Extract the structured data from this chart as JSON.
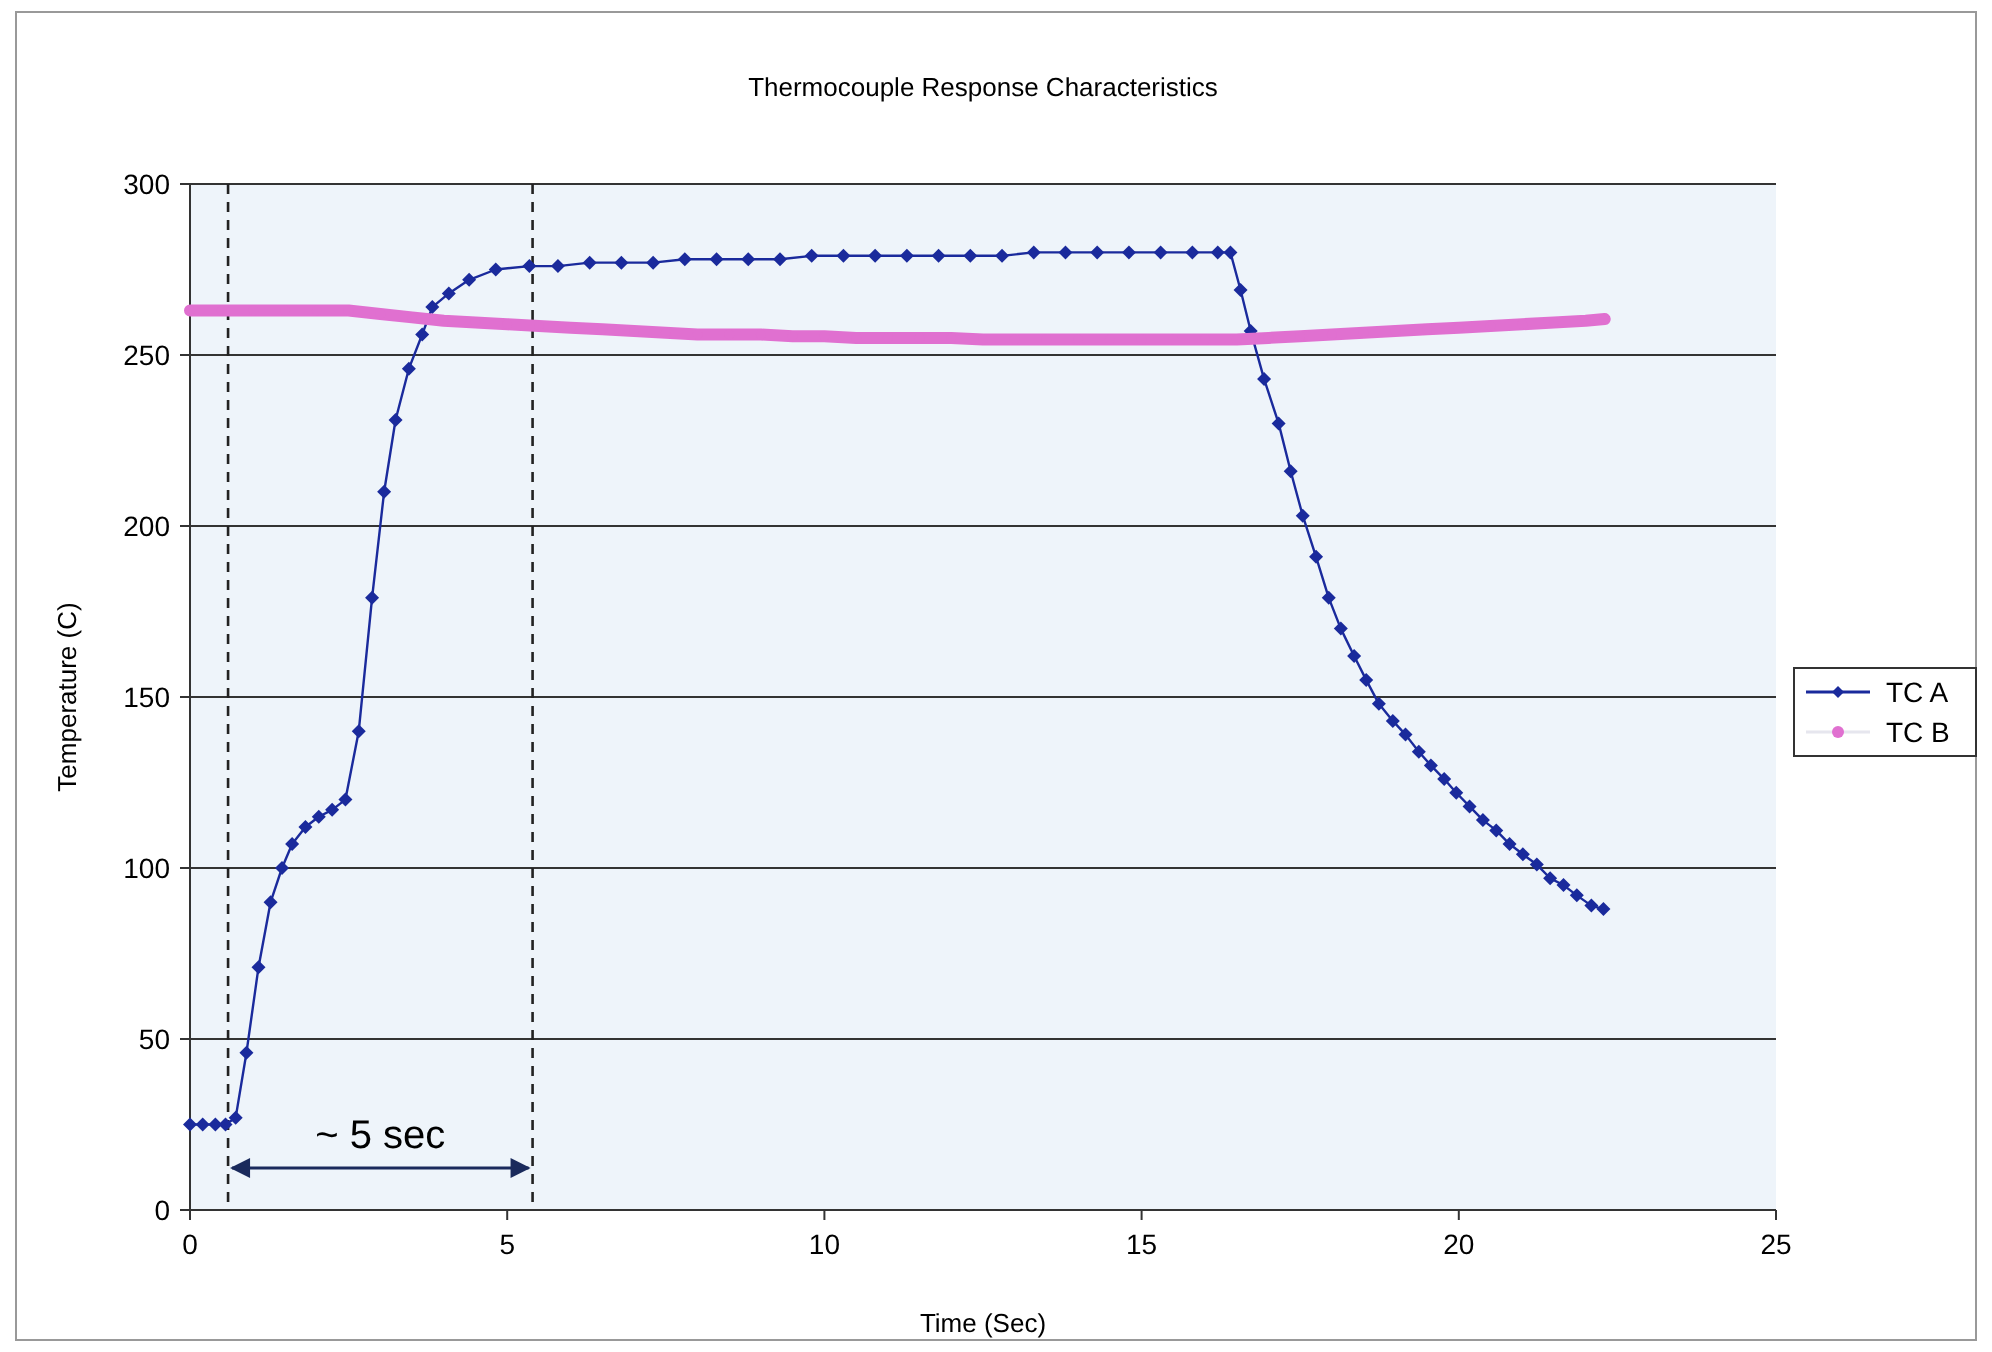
{
  "chart_data": {
    "type": "line",
    "title": "Thermocouple Response Characteristics",
    "xlabel": "Time (Sec)",
    "ylabel": "Temperature (C)",
    "xlim": [
      0,
      25
    ],
    "xticks": [
      0,
      5,
      10,
      15,
      20,
      25
    ],
    "ylim": [
      0,
      300
    ],
    "yticks": [
      0,
      50,
      100,
      150,
      200,
      250,
      300
    ],
    "grid": "y",
    "legend": "right",
    "series": [
      {
        "name": "TC A",
        "color": "#1a2a9c",
        "marker": "diamond",
        "x": [
          0,
          0.2,
          0.4,
          0.56,
          0.72,
          0.89,
          1.08,
          1.27,
          1.45,
          1.61,
          1.82,
          2.03,
          2.24,
          2.45,
          2.66,
          2.87,
          3.06,
          3.24,
          3.45,
          3.66,
          3.82,
          4.08,
          4.4,
          4.82,
          5.35,
          5.8,
          6.3,
          6.8,
          7.3,
          7.8,
          8.3,
          8.8,
          9.3,
          9.8,
          10.3,
          10.8,
          11.3,
          11.8,
          12.3,
          12.8,
          13.3,
          13.8,
          14.3,
          14.8,
          15.3,
          15.8,
          16.2,
          16.4,
          16.56,
          16.72,
          16.93,
          17.16,
          17.35,
          17.54,
          17.75,
          17.95,
          18.14,
          18.35,
          18.54,
          18.74,
          18.96,
          19.16,
          19.37,
          19.56,
          19.77,
          19.96,
          20.17,
          20.38,
          20.59,
          20.8,
          21.01,
          21.23,
          21.44,
          21.65,
          21.86,
          22.09,
          22.28
        ],
        "values": [
          25,
          25,
          25,
          25,
          27,
          46,
          71,
          90,
          100,
          107,
          112,
          115,
          117,
          120,
          140,
          179,
          210,
          231,
          246,
          256,
          264,
          268,
          272,
          275,
          276,
          276,
          277,
          277,
          277,
          278,
          278,
          278,
          278,
          279,
          279,
          279,
          279,
          279,
          279,
          279,
          280,
          280,
          280,
          280,
          280,
          280,
          280,
          280,
          269,
          257,
          243,
          230,
          216,
          203,
          191,
          179,
          170,
          162,
          155,
          148,
          143,
          139,
          134,
          130,
          126,
          122,
          118,
          114,
          111,
          107,
          104,
          101,
          97,
          95,
          92,
          89,
          88
        ]
      },
      {
        "name": "TC B",
        "color": "#e070d0",
        "marker": "circle",
        "x": [
          0,
          0.5,
          1,
          1.5,
          2,
          2.5,
          3,
          3.5,
          4,
          4.5,
          5,
          5.5,
          6,
          6.5,
          7,
          7.5,
          8,
          8.5,
          9,
          9.5,
          10,
          10.5,
          11,
          11.5,
          12,
          12.5,
          13,
          13.5,
          14,
          14.5,
          15,
          15.5,
          16,
          16.5,
          17,
          17.5,
          18,
          18.5,
          19,
          19.5,
          20,
          20.5,
          21,
          21.5,
          22,
          22.3
        ],
        "values": [
          263,
          263,
          263,
          263,
          263,
          263,
          262,
          261,
          260,
          259.5,
          259,
          258.5,
          258,
          257.5,
          257,
          256.5,
          256,
          256,
          256,
          255.5,
          255.5,
          255,
          255,
          255,
          255,
          254.5,
          254.5,
          254.5,
          254.5,
          254.5,
          254.5,
          254.5,
          254.5,
          254.5,
          255,
          255.5,
          256,
          256.5,
          257,
          257.5,
          258,
          258.5,
          259,
          259.5,
          260,
          260.5
        ]
      }
    ],
    "ref_lines": [
      {
        "axis": "x",
        "value": 0.6,
        "line_style": "dashed",
        "color": "#222222"
      },
      {
        "axis": "x",
        "value": 5.4,
        "line_style": "dashed",
        "color": "#222222"
      }
    ],
    "annotations": [
      "~ 5 sec"
    ]
  }
}
